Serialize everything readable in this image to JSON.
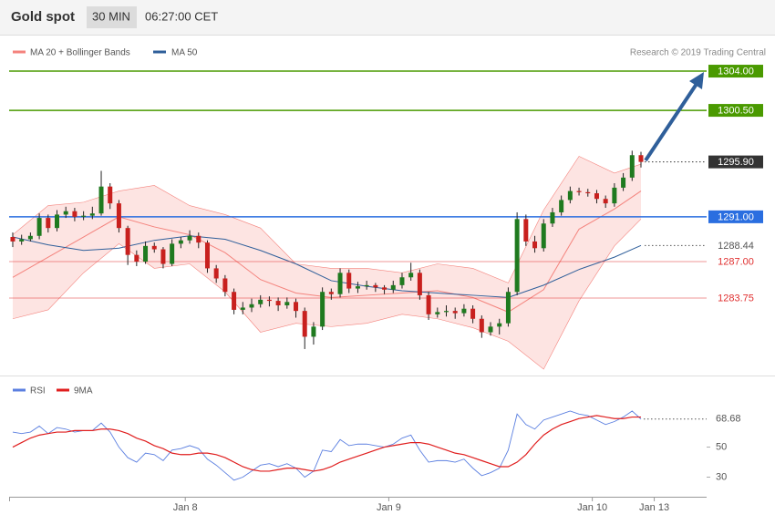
{
  "header": {
    "title": "Gold spot",
    "interval": "30 MIN",
    "time": "06:27:00 CET"
  },
  "credit": "Research © 2019 Trading Central",
  "chart_data": [
    {
      "type": "candlestick",
      "xlim": [
        -0.41,
        78.42
      ],
      "ylim": [
        1277,
        1305.5
      ],
      "up_color": "#1f7a1f",
      "down_color": "#c8201e",
      "candles": [
        [
          1289.2,
          1289.6,
          1288.3,
          1288.8
        ],
        [
          1288.8,
          1289.4,
          1288.5,
          1289.0
        ],
        [
          1289.0,
          1289.6,
          1288.8,
          1289.3
        ],
        [
          1289.3,
          1291.3,
          1289.0,
          1290.9
        ],
        [
          1290.9,
          1291.2,
          1289.6,
          1290.0
        ],
        [
          1290.0,
          1291.6,
          1289.7,
          1291.2
        ],
        [
          1291.2,
          1291.9,
          1290.9,
          1291.5
        ],
        [
          1291.5,
          1291.8,
          1290.6,
          1291.0
        ],
        [
          1291.0,
          1291.5,
          1290.7,
          1291.1
        ],
        [
          1291.1,
          1291.9,
          1290.8,
          1291.3
        ],
        [
          1291.3,
          1295.1,
          1291.1,
          1293.7
        ],
        [
          1293.7,
          1294.0,
          1291.7,
          1292.2
        ],
        [
          1292.2,
          1292.5,
          1289.6,
          1290.0
        ],
        [
          1290.0,
          1290.2,
          1286.7,
          1287.6
        ],
        [
          1287.6,
          1288.0,
          1286.6,
          1287.0
        ],
        [
          1287.0,
          1288.8,
          1286.8,
          1288.4
        ],
        [
          1288.4,
          1288.7,
          1287.8,
          1288.1
        ],
        [
          1288.1,
          1288.3,
          1286.4,
          1286.8
        ],
        [
          1286.8,
          1289.0,
          1286.6,
          1288.6
        ],
        [
          1288.6,
          1289.2,
          1288.2,
          1288.9
        ],
        [
          1288.9,
          1289.8,
          1288.6,
          1289.3
        ],
        [
          1289.3,
          1289.6,
          1288.2,
          1288.7
        ],
        [
          1288.7,
          1288.9,
          1286.0,
          1286.4
        ],
        [
          1286.4,
          1286.7,
          1285.1,
          1285.5
        ],
        [
          1285.5,
          1285.8,
          1283.9,
          1284.3
        ],
        [
          1284.3,
          1284.6,
          1282.3,
          1282.7
        ],
        [
          1282.7,
          1283.4,
          1282.3,
          1282.9
        ],
        [
          1282.9,
          1283.7,
          1282.5,
          1283.2
        ],
        [
          1283.2,
          1284.0,
          1282.9,
          1283.6
        ],
        [
          1283.6,
          1283.9,
          1283.0,
          1283.5
        ],
        [
          1283.5,
          1283.8,
          1282.6,
          1283.1
        ],
        [
          1283.1,
          1283.8,
          1282.8,
          1283.4
        ],
        [
          1283.4,
          1283.7,
          1282.0,
          1282.6
        ],
        [
          1282.6,
          1282.9,
          1279.2,
          1280.3
        ],
        [
          1280.3,
          1281.6,
          1279.6,
          1281.2
        ],
        [
          1281.2,
          1284.7,
          1280.9,
          1284.3
        ],
        [
          1284.3,
          1284.6,
          1283.6,
          1284.1
        ],
        [
          1284.1,
          1286.4,
          1283.8,
          1286.0
        ],
        [
          1286.0,
          1286.3,
          1284.2,
          1284.6
        ],
        [
          1284.6,
          1285.2,
          1284.2,
          1284.8
        ],
        [
          1284.8,
          1285.3,
          1284.5,
          1284.9
        ],
        [
          1284.9,
          1285.1,
          1284.3,
          1284.7
        ],
        [
          1284.7,
          1284.9,
          1284.1,
          1284.5
        ],
        [
          1284.5,
          1285.3,
          1284.2,
          1284.9
        ],
        [
          1284.9,
          1286.0,
          1284.6,
          1285.6
        ],
        [
          1285.6,
          1286.9,
          1285.3,
          1286.0
        ],
        [
          1286.0,
          1286.3,
          1283.6,
          1284.0
        ],
        [
          1284.0,
          1284.3,
          1281.8,
          1282.3
        ],
        [
          1282.3,
          1282.9,
          1282.0,
          1282.5
        ],
        [
          1282.5,
          1283.1,
          1282.1,
          1282.6
        ],
        [
          1282.6,
          1282.9,
          1281.9,
          1282.4
        ],
        [
          1282.4,
          1283.2,
          1282.1,
          1282.8
        ],
        [
          1282.8,
          1283.1,
          1281.5,
          1281.9
        ],
        [
          1281.9,
          1282.2,
          1280.2,
          1280.7
        ],
        [
          1280.7,
          1281.6,
          1280.4,
          1281.2
        ],
        [
          1281.2,
          1281.9,
          1280.5,
          1281.5
        ],
        [
          1281.5,
          1284.7,
          1281.2,
          1284.3
        ],
        [
          1284.3,
          1291.4,
          1284.0,
          1290.8
        ],
        [
          1290.8,
          1291.2,
          1288.4,
          1288.8
        ],
        [
          1288.8,
          1289.3,
          1287.8,
          1288.2
        ],
        [
          1288.2,
          1290.8,
          1287.9,
          1290.4
        ],
        [
          1290.4,
          1291.8,
          1290.1,
          1291.4
        ],
        [
          1291.4,
          1292.9,
          1291.1,
          1292.5
        ],
        [
          1292.5,
          1293.7,
          1292.2,
          1293.3
        ],
        [
          1293.3,
          1293.6,
          1292.9,
          1293.2
        ],
        [
          1293.2,
          1293.5,
          1292.8,
          1293.1
        ],
        [
          1293.1,
          1293.4,
          1292.2,
          1292.6
        ],
        [
          1292.6,
          1292.9,
          1291.8,
          1292.2
        ],
        [
          1292.2,
          1294.0,
          1291.9,
          1293.6
        ],
        [
          1293.6,
          1294.9,
          1293.3,
          1294.5
        ],
        [
          1294.5,
          1296.9,
          1294.2,
          1296.5
        ],
        [
          1296.5,
          1296.8,
          1295.4,
          1295.9
        ]
      ],
      "overlay_x": [
        0,
        4,
        8,
        12,
        16,
        20,
        24,
        28,
        32,
        36,
        40,
        44,
        48,
        52,
        56,
        60,
        64,
        68,
        71
      ],
      "bands": {
        "name": "MA 20 + Bollinger Bands",
        "color": "#f4837d",
        "upper": [
          1289.4,
          1292.0,
          1292.3,
          1293.3,
          1293.8,
          1292.0,
          1291.2,
          1290.0,
          1286.8,
          1286.4,
          1286.4,
          1286.0,
          1286.8,
          1286.4,
          1285.1,
          1291.6,
          1296.4,
          1294.9,
          1295.7
        ],
        "lower": [
          1281.9,
          1282.7,
          1286.0,
          1288.6,
          1286.4,
          1286.8,
          1284.3,
          1280.7,
          1281.5,
          1281.2,
          1281.5,
          1282.3,
          1281.9,
          1281.1,
          1279.9,
          1277.4,
          1283.5,
          1288.4,
          1290.8
        ],
        "middle": [
          1285.6,
          1287.4,
          1289.2,
          1291.0,
          1290.1,
          1289.4,
          1287.8,
          1285.4,
          1284.2,
          1283.8,
          1284.0,
          1284.2,
          1284.4,
          1283.8,
          1282.5,
          1284.5,
          1289.9,
          1291.7,
          1293.3
        ]
      },
      "ma50": {
        "name": "MA 50",
        "color": "#2f5f9a",
        "values": [
          1289.2,
          1288.5,
          1288.0,
          1288.2,
          1288.9,
          1289.3,
          1289.0,
          1288.0,
          1286.8,
          1285.3,
          1284.8,
          1284.4,
          1284.2,
          1284.0,
          1283.8,
          1284.9,
          1286.3,
          1287.4,
          1288.44
        ]
      },
      "levels": [
        {
          "value": 1304,
          "label": "1304.00",
          "color": "#4a9a00",
          "style": "solid-tag"
        },
        {
          "value": 1300.5,
          "label": "1300.50",
          "color": "#4a9a00",
          "style": "solid-tag"
        },
        {
          "value": 1295.9,
          "label": "1295.90",
          "color": "#333333",
          "style": "dotted-tag"
        },
        {
          "value": 1291,
          "label": "1291.00",
          "color": "#2a6ee0",
          "style": "solid-tag"
        },
        {
          "value": 1288.44,
          "label": "1288.44",
          "color": "#555555",
          "style": "dotted-text"
        },
        {
          "value": 1287,
          "label": "1287.00",
          "color": "#e03030",
          "style": "solid-text"
        },
        {
          "value": 1283.75,
          "label": "1283.75",
          "color": "#e03030",
          "style": "solid-text"
        }
      ]
    },
    {
      "type": "line",
      "ylim": [
        20,
        94
      ],
      "yticks": [
        30,
        50
      ],
      "last_value": 68.68,
      "xticks": [
        {
          "value": 19.5,
          "label": "Jan 8"
        },
        {
          "value": 42.5,
          "label": "Jan 9"
        },
        {
          "value": 65.5,
          "label": "Jan 10"
        },
        {
          "value": 72.5,
          "label": "Jan 13"
        }
      ],
      "series": [
        {
          "name": "RSI",
          "color": "#5b7fe0",
          "values": [
            60,
            59,
            60,
            64,
            59,
            63,
            62,
            60,
            61,
            61,
            66,
            60,
            50,
            43,
            40,
            46,
            45,
            41,
            48,
            49,
            51,
            49,
            42,
            38,
            33,
            28,
            30,
            34,
            38,
            39,
            37,
            39,
            36,
            30,
            34,
            48,
            47,
            55,
            51,
            52,
            52,
            51,
            50,
            52,
            56,
            58,
            48,
            40,
            41,
            41,
            40,
            42,
            36,
            31,
            33,
            36,
            48,
            72,
            65,
            62,
            68,
            70,
            72,
            74,
            72,
            71,
            68,
            65,
            67,
            70,
            74,
            68.68
          ]
        },
        {
          "name": "9MA",
          "color": "#e01e1e",
          "values": [
            50,
            53,
            56,
            58,
            59,
            60,
            60,
            61,
            61,
            61,
            62,
            62,
            61,
            59,
            56,
            54,
            51,
            49,
            46,
            45,
            45,
            46,
            46,
            45,
            43,
            40,
            37,
            35,
            34,
            34,
            35,
            36,
            36,
            35,
            34,
            35,
            37,
            40,
            42,
            44,
            46,
            48,
            50,
            51,
            52,
            53,
            53,
            52,
            50,
            48,
            46,
            45,
            43,
            41,
            39,
            37,
            37,
            40,
            45,
            52,
            58,
            62,
            65,
            67,
            69,
            70,
            71,
            70,
            69,
            69,
            70,
            70
          ]
        }
      ]
    }
  ]
}
